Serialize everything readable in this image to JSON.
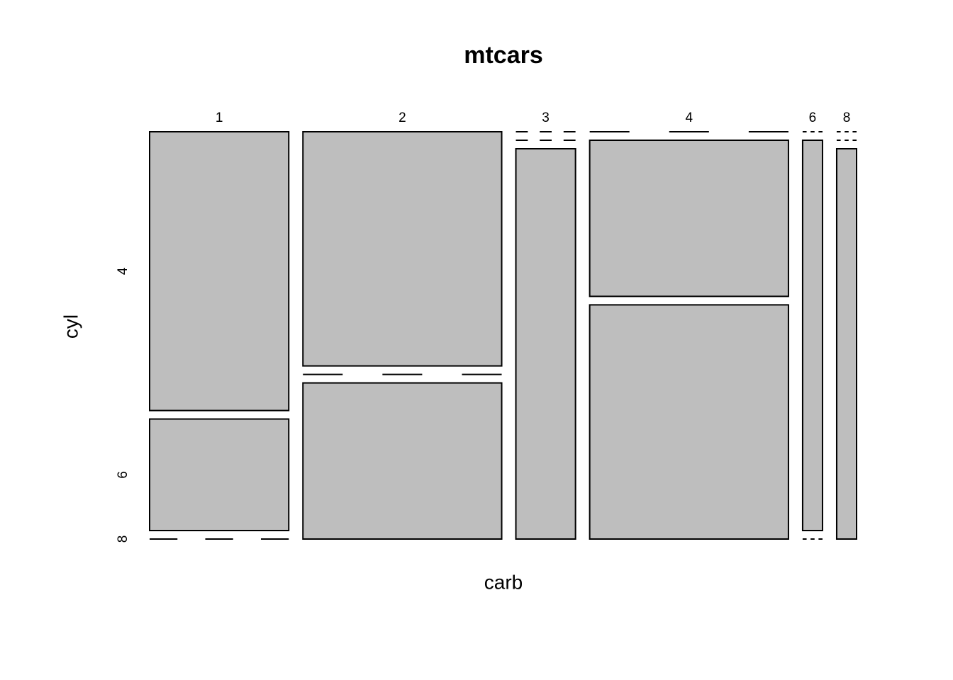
{
  "chart_data": {
    "type": "mosaic",
    "title": "mtcars",
    "x_label": "carb",
    "y_label": "cyl",
    "categories": [
      "1",
      "2",
      "3",
      "4",
      "6",
      "8"
    ],
    "series": [
      {
        "name": "4",
        "color": "#bebebe",
        "values": [
          5,
          6,
          0,
          0,
          0,
          0
        ]
      },
      {
        "name": "6",
        "color": "#bebebe",
        "values": [
          2,
          0,
          0,
          4,
          1,
          0
        ]
      },
      {
        "name": "8",
        "color": "#bebebe",
        "values": [
          0,
          4,
          3,
          6,
          0,
          1
        ]
      }
    ]
  }
}
